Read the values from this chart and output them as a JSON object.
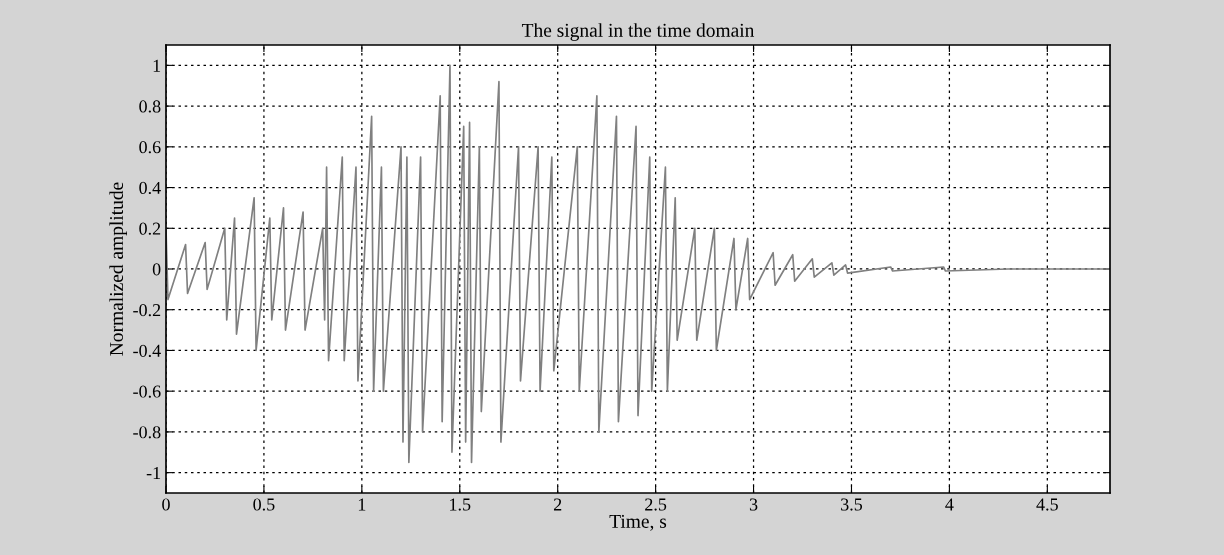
{
  "chart_data": {
    "type": "line",
    "title": "The signal in the time domain",
    "xlabel": "Time, s",
    "ylabel": "Normalized amplitude",
    "x": [
      0,
      0.01,
      0.1,
      0.11,
      0.2,
      0.21,
      0.3,
      0.31,
      0.35,
      0.36,
      0.45,
      0.46,
      0.53,
      0.54,
      0.6,
      0.61,
      0.7,
      0.71,
      0.8,
      0.81,
      0.82,
      0.83,
      0.9,
      0.91,
      0.97,
      0.98,
      1.05,
      1.06,
      1.1,
      1.11,
      1.2,
      1.21,
      1.23,
      1.24,
      1.3,
      1.31,
      1.4,
      1.41,
      1.45,
      1.46,
      1.52,
      1.53,
      1.55,
      1.56,
      1.6,
      1.61,
      1.7,
      1.71,
      1.8,
      1.81,
      1.9,
      1.91,
      1.97,
      1.98,
      2.1,
      2.11,
      2.2,
      2.21,
      2.3,
      2.31,
      2.4,
      2.41,
      2.47,
      2.48,
      2.55,
      2.56,
      2.6,
      2.61,
      2.7,
      2.71,
      2.8,
      2.81,
      2.9,
      2.91,
      2.97,
      2.98,
      3.1,
      3.11,
      3.2,
      3.21,
      3.3,
      3.31,
      3.4,
      3.41,
      3.47,
      3.48,
      3.7,
      3.71,
      3.97,
      3.98,
      4.3,
      4.31,
      4.82
    ],
    "series": [
      {
        "color": "#808080",
        "values": [
          0.2,
          -0.15,
          0.12,
          -0.12,
          0.13,
          -0.1,
          0.2,
          -0.25,
          0.25,
          -0.32,
          0.35,
          -0.4,
          0.25,
          -0.25,
          0.3,
          -0.3,
          0.28,
          -0.3,
          0.2,
          -0.25,
          0.5,
          -0.45,
          0.55,
          -0.45,
          0.5,
          -0.55,
          0.75,
          -0.6,
          0.5,
          -0.6,
          0.6,
          -0.85,
          0.55,
          -0.95,
          0.55,
          -0.8,
          0.85,
          -0.75,
          1.0,
          -0.9,
          0.7,
          -0.85,
          0.72,
          -0.95,
          0.6,
          -0.7,
          0.92,
          -0.85,
          0.6,
          -0.55,
          0.6,
          -0.6,
          0.55,
          -0.5,
          0.6,
          -0.6,
          0.85,
          -0.8,
          0.75,
          -0.75,
          0.7,
          -0.72,
          0.55,
          -0.6,
          0.5,
          -0.6,
          0.35,
          -0.35,
          0.2,
          -0.35,
          0.2,
          -0.4,
          0.15,
          -0.2,
          0.15,
          -0.15,
          0.08,
          -0.08,
          0.07,
          -0.06,
          0.05,
          -0.04,
          0.03,
          -0.03,
          0.02,
          -0.02,
          0.01,
          -0.01,
          0.01,
          -0.01,
          0,
          0,
          0
        ]
      }
    ],
    "xlim": [
      0,
      4.82
    ],
    "ylim": [
      -1.1,
      1.1
    ],
    "xticks": [
      0,
      0.5,
      1,
      1.5,
      2,
      2.5,
      3,
      3.5,
      4,
      4.5
    ],
    "yticks": [
      -1,
      -0.8,
      -0.6,
      -0.4,
      -0.2,
      0,
      0.2,
      0.4,
      0.6,
      0.8,
      1
    ],
    "grid": true,
    "line_style": "solid",
    "marker": "none"
  }
}
